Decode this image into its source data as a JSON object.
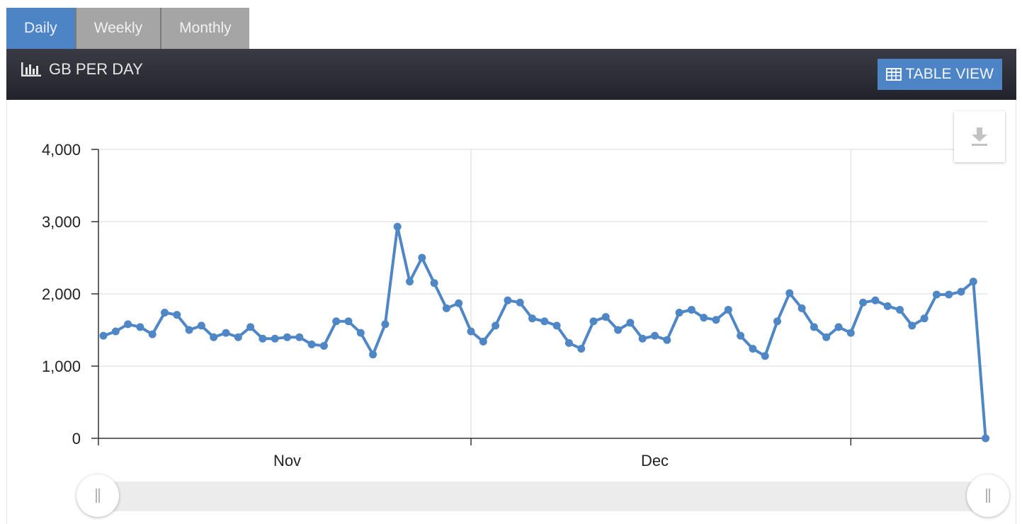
{
  "tabs": [
    {
      "label": "Daily",
      "active": true
    },
    {
      "label": "Weekly",
      "active": false
    },
    {
      "label": "Monthly",
      "active": false
    }
  ],
  "panel": {
    "title": "GB PER DAY",
    "title_icon": "bar-chart-icon",
    "table_view_label": "TABLE VIEW",
    "table_view_icon": "table-icon"
  },
  "download": {
    "icon": "download-icon"
  },
  "colors": {
    "line": "#4f86c6",
    "accent": "#4d84c5"
  },
  "chart_data": {
    "type": "line",
    "title": "",
    "xlabel": "",
    "ylabel": "",
    "ylim": [
      0,
      4000
    ],
    "yticks": [
      0,
      1000,
      2000,
      3000,
      4000
    ],
    "ytick_labels": [
      "0",
      "1,000",
      "2,000",
      "3,000",
      "4,000"
    ],
    "xtick_labels": [
      "Nov",
      "Dec"
    ],
    "x_start": "2023-10-02",
    "grid": true,
    "series": [
      {
        "values": [
          1420,
          1480,
          1580,
          1540,
          1440,
          1740,
          1710,
          1500,
          1560,
          1400,
          1460,
          1400,
          1540,
          1380,
          1380,
          1400,
          1400,
          1300,
          1280,
          1620,
          1620,
          1460,
          1160,
          1580,
          2930,
          2170,
          2500,
          2150,
          1800,
          1870,
          1480,
          1340,
          1560,
          1910,
          1880,
          1660,
          1620,
          1560,
          1320,
          1240,
          1620,
          1680,
          1500,
          1600,
          1380,
          1420,
          1360,
          1740,
          1780,
          1670,
          1640,
          1780,
          1420,
          1240,
          1140,
          1620,
          2010,
          1800,
          1540,
          1400,
          1540,
          1460,
          1880,
          1910,
          1830,
          1780,
          1560,
          1660,
          1990,
          1990,
          2030,
          2170,
          0
        ]
      }
    ]
  },
  "slider": {
    "left_handle": "range-start-handle",
    "right_handle": "range-end-handle"
  }
}
